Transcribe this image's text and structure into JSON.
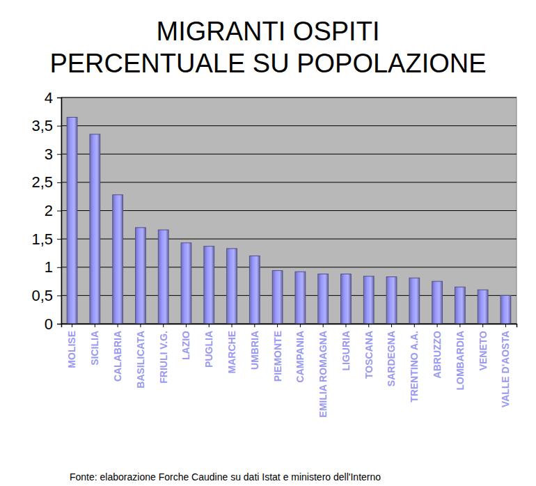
{
  "chart_data": {
    "type": "bar",
    "title": "MIGRANTI OSPITI",
    "subtitle": "PERCENTUALE SU POPOLAZIONE",
    "source": "Fonte: elaborazione Forche Caudine su dati Istat e ministero dell'Interno",
    "categories": [
      "MOLISE",
      "SICILIA",
      "CALABRIA",
      "BASILICATA",
      "FRIULI V.G.",
      "LAZIO",
      "PUGLIA",
      "MARCHE",
      "UMBRIA",
      "PIEMONTE",
      "CAMPANIA",
      "EMILIA ROMAGNA",
      "LIGURIA",
      "TOSCANA",
      "SARDEGNA",
      "TRENTINO A.A.",
      "ABRUZZO",
      "LOMBARDIA",
      "VENETO",
      "VALLE D'AOSTA"
    ],
    "values": [
      3.65,
      3.35,
      2.28,
      1.7,
      1.66,
      1.43,
      1.37,
      1.33,
      1.2,
      0.94,
      0.92,
      0.88,
      0.88,
      0.84,
      0.83,
      0.81,
      0.75,
      0.65,
      0.6,
      0.5
    ],
    "color": "#9999ff",
    "ylim": [
      0,
      4
    ],
    "yticks": [
      0,
      {
        "value": 0.5,
        "label": "0,5"
      },
      1,
      {
        "value": 1.5,
        "label": "1,5"
      },
      2,
      {
        "value": 2.5,
        "label": "2,5"
      },
      3,
      {
        "value": 3.5,
        "label": "3,5"
      },
      4
    ],
    "grid": true
  }
}
